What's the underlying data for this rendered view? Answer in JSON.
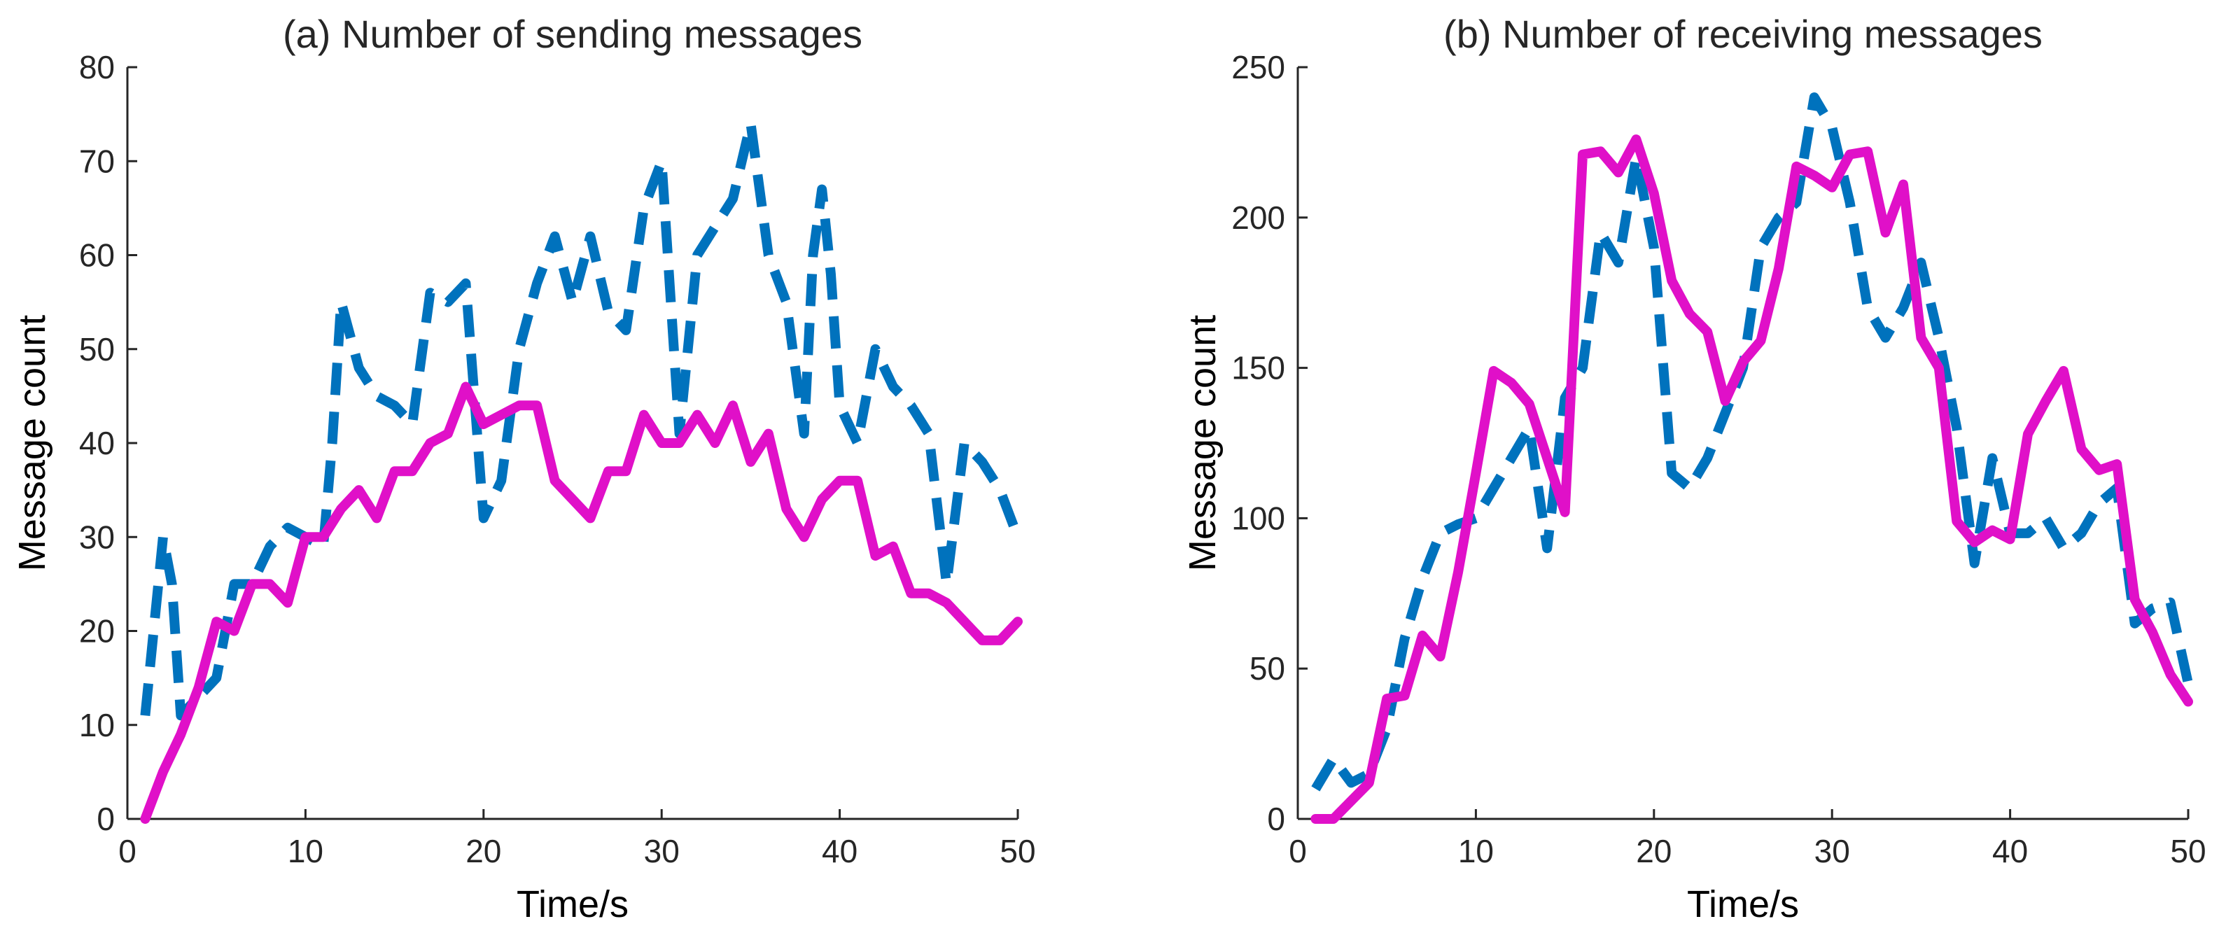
{
  "colors": {
    "dashed_series": "#0072BD",
    "solid_series": "#E010C8"
  },
  "chart_data": [
    {
      "type": "line",
      "title": "(a) Number of sending messages",
      "xlabel": "Time/s",
      "ylabel": "Message count",
      "xlim": [
        0,
        50
      ],
      "ylim": [
        0,
        80
      ],
      "xticks": [
        0,
        10,
        20,
        30,
        40,
        50
      ],
      "yticks": [
        0,
        10,
        20,
        30,
        40,
        50,
        60,
        70,
        80
      ],
      "grid": false,
      "series": [
        {
          "style": "dashed",
          "color": "#0072BD",
          "x": [
            1,
            2,
            2.5,
            3,
            4,
            5,
            6,
            7,
            8,
            9,
            10,
            11,
            11.5,
            12,
            13,
            14,
            15,
            16,
            17,
            18,
            19,
            20,
            21,
            22,
            23,
            24,
            25,
            26,
            27,
            28,
            29,
            30,
            31,
            32,
            33,
            34,
            35,
            36,
            37,
            38,
            38.5,
            39,
            39.5,
            40,
            41,
            42,
            43,
            44,
            45,
            46,
            47,
            48,
            49,
            50
          ],
          "y": [
            11,
            30,
            25,
            11,
            13,
            15,
            25,
            25,
            29,
            31,
            30,
            29,
            40,
            55,
            48,
            45,
            44,
            42,
            56,
            55,
            57,
            32,
            36,
            50,
            57,
            62,
            55,
            62,
            54,
            52,
            65,
            70,
            41,
            60,
            63,
            66,
            74,
            60,
            55,
            41,
            60,
            67,
            58,
            44,
            40,
            50,
            46,
            44,
            41,
            25,
            40,
            38,
            35,
            30
          ]
        },
        {
          "style": "solid",
          "color": "#E010C8",
          "x": [
            1,
            2,
            3,
            4,
            5,
            6,
            7,
            8,
            9,
            10,
            11,
            12,
            13,
            14,
            15,
            16,
            17,
            18,
            19,
            20,
            21,
            22,
            23,
            24,
            25,
            26,
            27,
            28,
            29,
            30,
            31,
            32,
            33,
            34,
            35,
            36,
            37,
            38,
            39,
            40,
            41,
            42,
            43,
            44,
            45,
            46,
            47,
            48,
            49,
            50
          ],
          "y": [
            0,
            5,
            9,
            14,
            21,
            20,
            25,
            25,
            23,
            30,
            30,
            33,
            35,
            32,
            37,
            37,
            40,
            41,
            46,
            42,
            43,
            44,
            44,
            36,
            34,
            32,
            37,
            37,
            43,
            40,
            40,
            43,
            40,
            44,
            38,
            41,
            33,
            30,
            34,
            36,
            36,
            28,
            29,
            24,
            24,
            23,
            21,
            19,
            19,
            21
          ]
        }
      ]
    },
    {
      "type": "line",
      "title": "(b) Number of receiving messages",
      "xlabel": "Time/s",
      "ylabel": "Message count",
      "xlim": [
        0,
        50
      ],
      "ylim": [
        0,
        250
      ],
      "xticks": [
        0,
        10,
        20,
        30,
        40,
        50
      ],
      "yticks": [
        0,
        50,
        100,
        150,
        200,
        250
      ],
      "grid": false,
      "series": [
        {
          "style": "dashed",
          "color": "#0072BD",
          "x": [
            1,
            2,
            3,
            4,
            5,
            6,
            7,
            8,
            9,
            10,
            11,
            12,
            13,
            14,
            15,
            16,
            17,
            18,
            19,
            20,
            21,
            22,
            23,
            24,
            25,
            26,
            27,
            28,
            29,
            30,
            31,
            32,
            33,
            34,
            35,
            36,
            37,
            38,
            39,
            40,
            41,
            42,
            43,
            44,
            45,
            46,
            47,
            48,
            49,
            50
          ],
          "y": [
            10,
            20,
            12,
            15,
            30,
            60,
            80,
            95,
            98,
            100,
            110,
            120,
            130,
            90,
            140,
            150,
            195,
            185,
            220,
            190,
            115,
            110,
            120,
            135,
            150,
            190,
            200,
            205,
            240,
            230,
            205,
            170,
            160,
            170,
            185,
            160,
            130,
            85,
            120,
            95,
            95,
            100,
            90,
            95,
            105,
            110,
            65,
            70,
            72,
            45
          ]
        },
        {
          "style": "solid",
          "color": "#E010C8",
          "x": [
            1,
            2,
            3,
            4,
            5,
            6,
            7,
            8,
            9,
            10,
            11,
            12,
            13,
            14,
            15,
            16,
            17,
            18,
            19,
            20,
            21,
            22,
            23,
            24,
            25,
            26,
            27,
            28,
            29,
            30,
            31,
            32,
            33,
            34,
            35,
            36,
            37,
            38,
            39,
            40,
            41,
            42,
            43,
            44,
            45,
            46,
            47,
            48,
            49,
            50
          ],
          "y": [
            0,
            0,
            6,
            12,
            40,
            41,
            61,
            54,
            82,
            115,
            149,
            145,
            138,
            120,
            102,
            221,
            222,
            215,
            226,
            208,
            179,
            168,
            162,
            139,
            152,
            159,
            183,
            217,
            214,
            210,
            221,
            222,
            195,
            211,
            160,
            150,
            99,
            92,
            96,
            93,
            128,
            139,
            149,
            123,
            116,
            118,
            73,
            62,
            48,
            39
          ]
        }
      ]
    }
  ]
}
